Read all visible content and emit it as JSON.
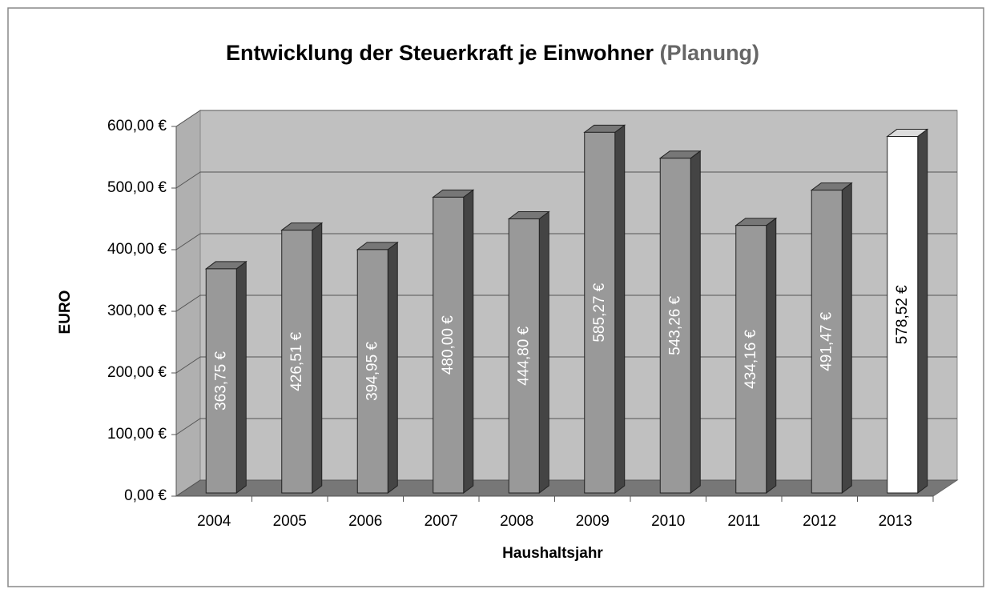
{
  "chart_data": {
    "type": "bar3d",
    "title": "Entwicklung der Steuerkraft je Einwohner",
    "title_note": "(Planung)",
    "x_label": "Haushaltsjahr",
    "y_label": "EURO",
    "categories": [
      "2004",
      "2005",
      "2006",
      "2007",
      "2008",
      "2009",
      "2010",
      "2011",
      "2012",
      "2013"
    ],
    "values": [
      363.75,
      426.51,
      394.95,
      480.0,
      444.8,
      585.27,
      543.26,
      434.16,
      491.47,
      578.52
    ],
    "value_labels": [
      "363,75 €",
      "426,51 €",
      "394,95 €",
      "480,00 €",
      "444,80 €",
      "585,27 €",
      "543,26 €",
      "434,16 €",
      "491,47 €",
      "578,52 €"
    ],
    "colors": [
      "#999999",
      "#999999",
      "#999999",
      "#999999",
      "#999999",
      "#999999",
      "#999999",
      "#999999",
      "#999999",
      "#ffffff"
    ],
    "ylim": [
      0,
      600
    ],
    "yticks": [
      {
        "value": 0,
        "label": "0,00 €"
      },
      {
        "value": 100,
        "label": "100,00 €"
      },
      {
        "value": 200,
        "label": "200,00 €"
      },
      {
        "value": 300,
        "label": "300,00 €"
      },
      {
        "value": 400,
        "label": "400,00 €"
      },
      {
        "value": 500,
        "label": "500,00 €"
      },
      {
        "value": 600,
        "label": "600,00 €"
      }
    ],
    "grid": true
  }
}
